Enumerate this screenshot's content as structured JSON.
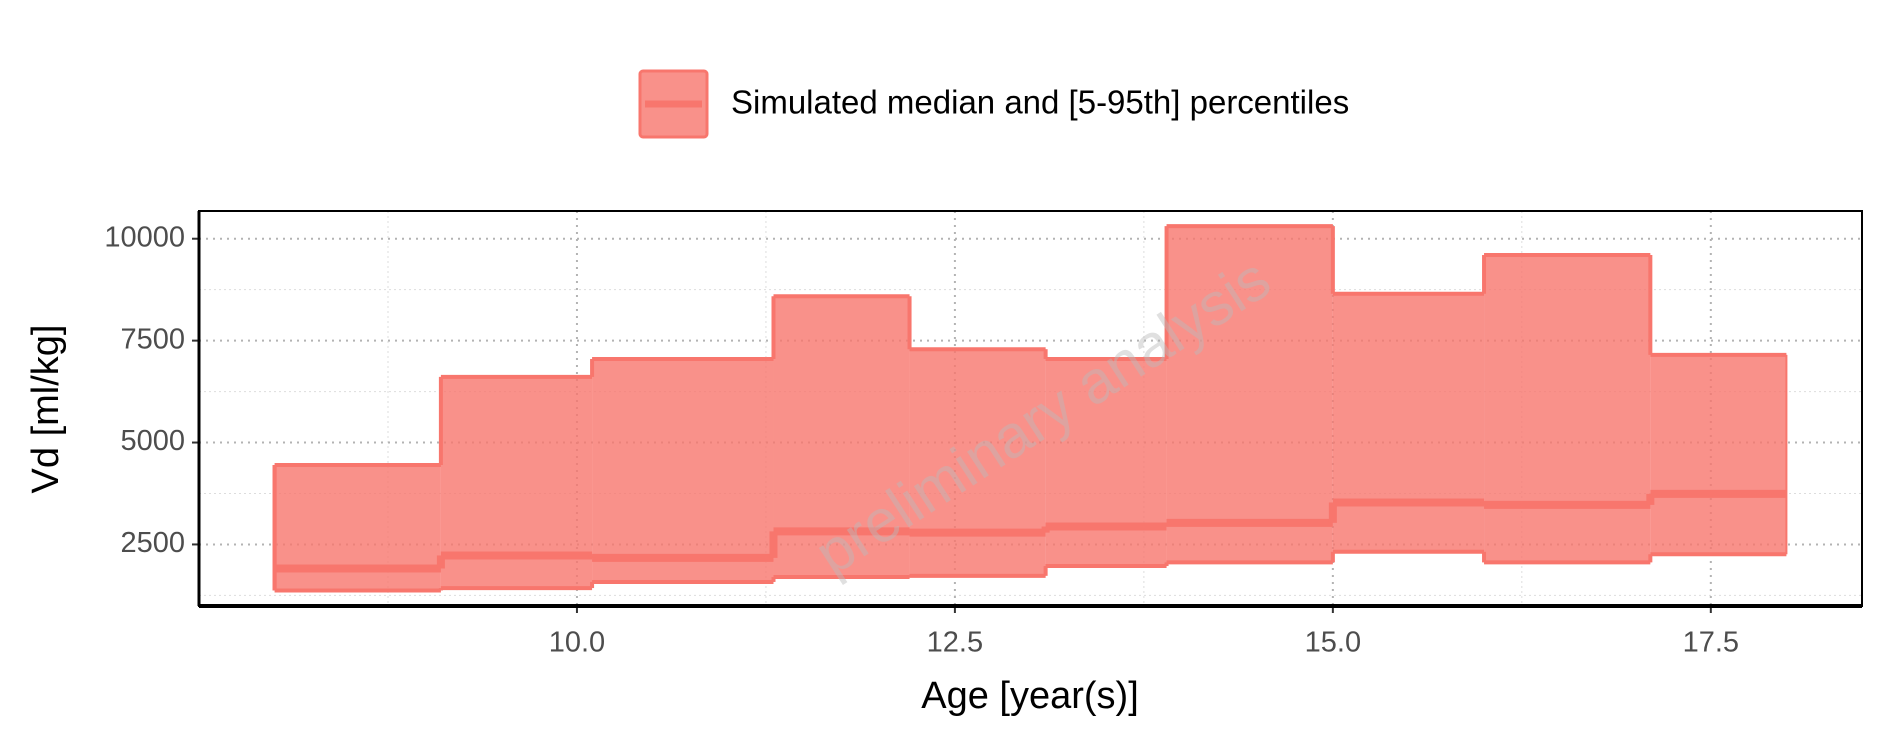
{
  "chart_data": {
    "type": "step-band",
    "x_label": "Age [year(s)]",
    "y_label": "Vd [ml/kg]",
    "annotation": "preliminary analysis",
    "legend": "Simulated median and [5-95th] percentiles",
    "legend_position": "top",
    "color": "#f8766d",
    "bins": [
      8.0,
      9.1,
      10.1,
      11.3,
      12.2,
      13.1,
      13.9,
      15.0,
      16.0,
      17.1,
      18.0
    ],
    "upper": [
      4450,
      6610,
      7050,
      8590,
      7290,
      7050,
      10310,
      8650,
      9600,
      7150
    ],
    "median": [
      1910,
      2230,
      2170,
      2820,
      2790,
      2940,
      3030,
      3530,
      3470,
      3740
    ],
    "lower": [
      1370,
      1430,
      1580,
      1700,
      1730,
      1970,
      2060,
      2320,
      2060,
      2260
    ],
    "xlim": [
      7.5,
      18.5
    ],
    "ylim": [
      990,
      10680
    ],
    "xticks": [
      {
        "value": 10,
        "label": "10.0"
      },
      12.5,
      {
        "value": 15,
        "label": "15.0"
      },
      17.5
    ],
    "yticks": [
      2500,
      5000,
      7500,
      10000
    ],
    "xminor": [
      8.75,
      11.25,
      13.75,
      16.25
    ],
    "yminor": [
      1250,
      3750,
      6250,
      8750
    ],
    "grid": true
  }
}
